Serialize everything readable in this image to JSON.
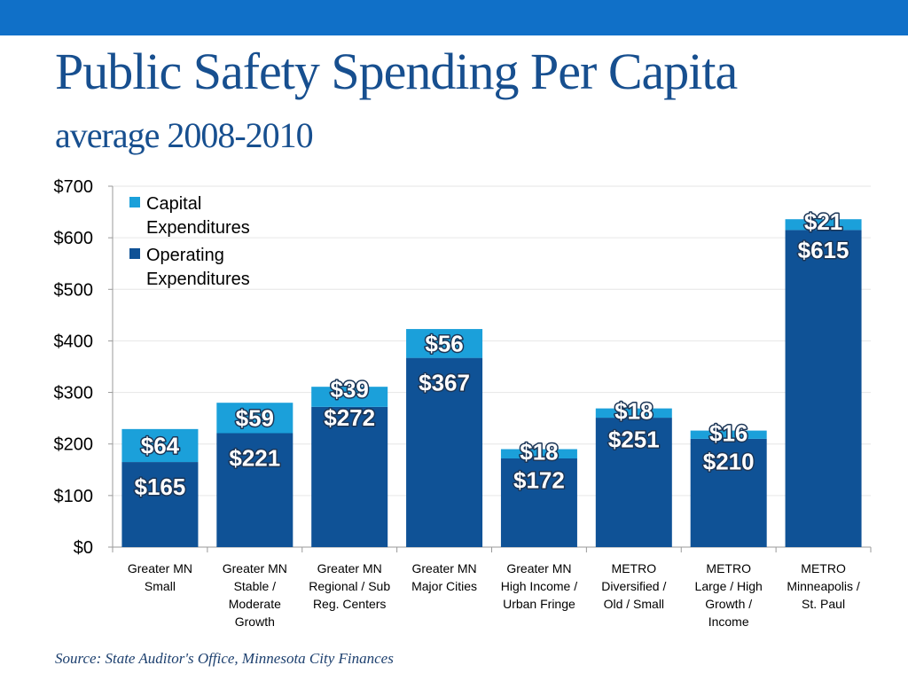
{
  "header": {
    "title": "Public Safety Spending Per Capita",
    "subtitle": "average 2008-2010",
    "band_color": "#1070c8"
  },
  "source": "Source: State Auditor's Office, Minnesota City Finances",
  "chart_data": {
    "type": "bar",
    "stacked": true,
    "categories": [
      [
        "Greater MN",
        "Small"
      ],
      [
        "Greater MN",
        "Stable /",
        "Moderate",
        "Growth"
      ],
      [
        "Greater MN",
        "Regional / Sub",
        "Reg. Centers"
      ],
      [
        "Greater MN",
        "Major Cities"
      ],
      [
        "Greater MN",
        "High Income /",
        "Urban Fringe"
      ],
      [
        "METRO",
        "Diversified /",
        "Old / Small"
      ],
      [
        "METRO",
        "Large / High",
        "Growth /",
        "Income"
      ],
      [
        "METRO",
        "Minneapolis /",
        "St. Paul"
      ]
    ],
    "series": [
      {
        "name": "Operating Expenditures",
        "legend_lines": [
          "Operating",
          "Expenditures"
        ],
        "color": "#0f5296",
        "values": [
          165,
          221,
          272,
          367,
          172,
          251,
          210,
          615
        ],
        "labels": [
          "$165",
          "$221",
          "$272",
          "$367",
          "$172",
          "$251",
          "$210",
          "$615"
        ]
      },
      {
        "name": "Capital Expenditures",
        "legend_lines": [
          "Capital",
          "Expenditures"
        ],
        "color": "#1ba0da",
        "values": [
          64,
          59,
          39,
          56,
          18,
          18,
          16,
          21
        ],
        "labels": [
          "$64",
          "$59",
          "$39",
          "$56",
          "$18",
          "$18",
          "$16",
          "$21"
        ]
      }
    ],
    "ylim": [
      0,
      700
    ],
    "yticks": [
      0,
      100,
      200,
      300,
      400,
      500,
      600,
      700
    ],
    "ytick_labels": [
      "$0",
      "$100",
      "$200",
      "$300",
      "$400",
      "$500",
      "$600",
      "$700"
    ],
    "legend_position": "top-left",
    "grid": true
  }
}
